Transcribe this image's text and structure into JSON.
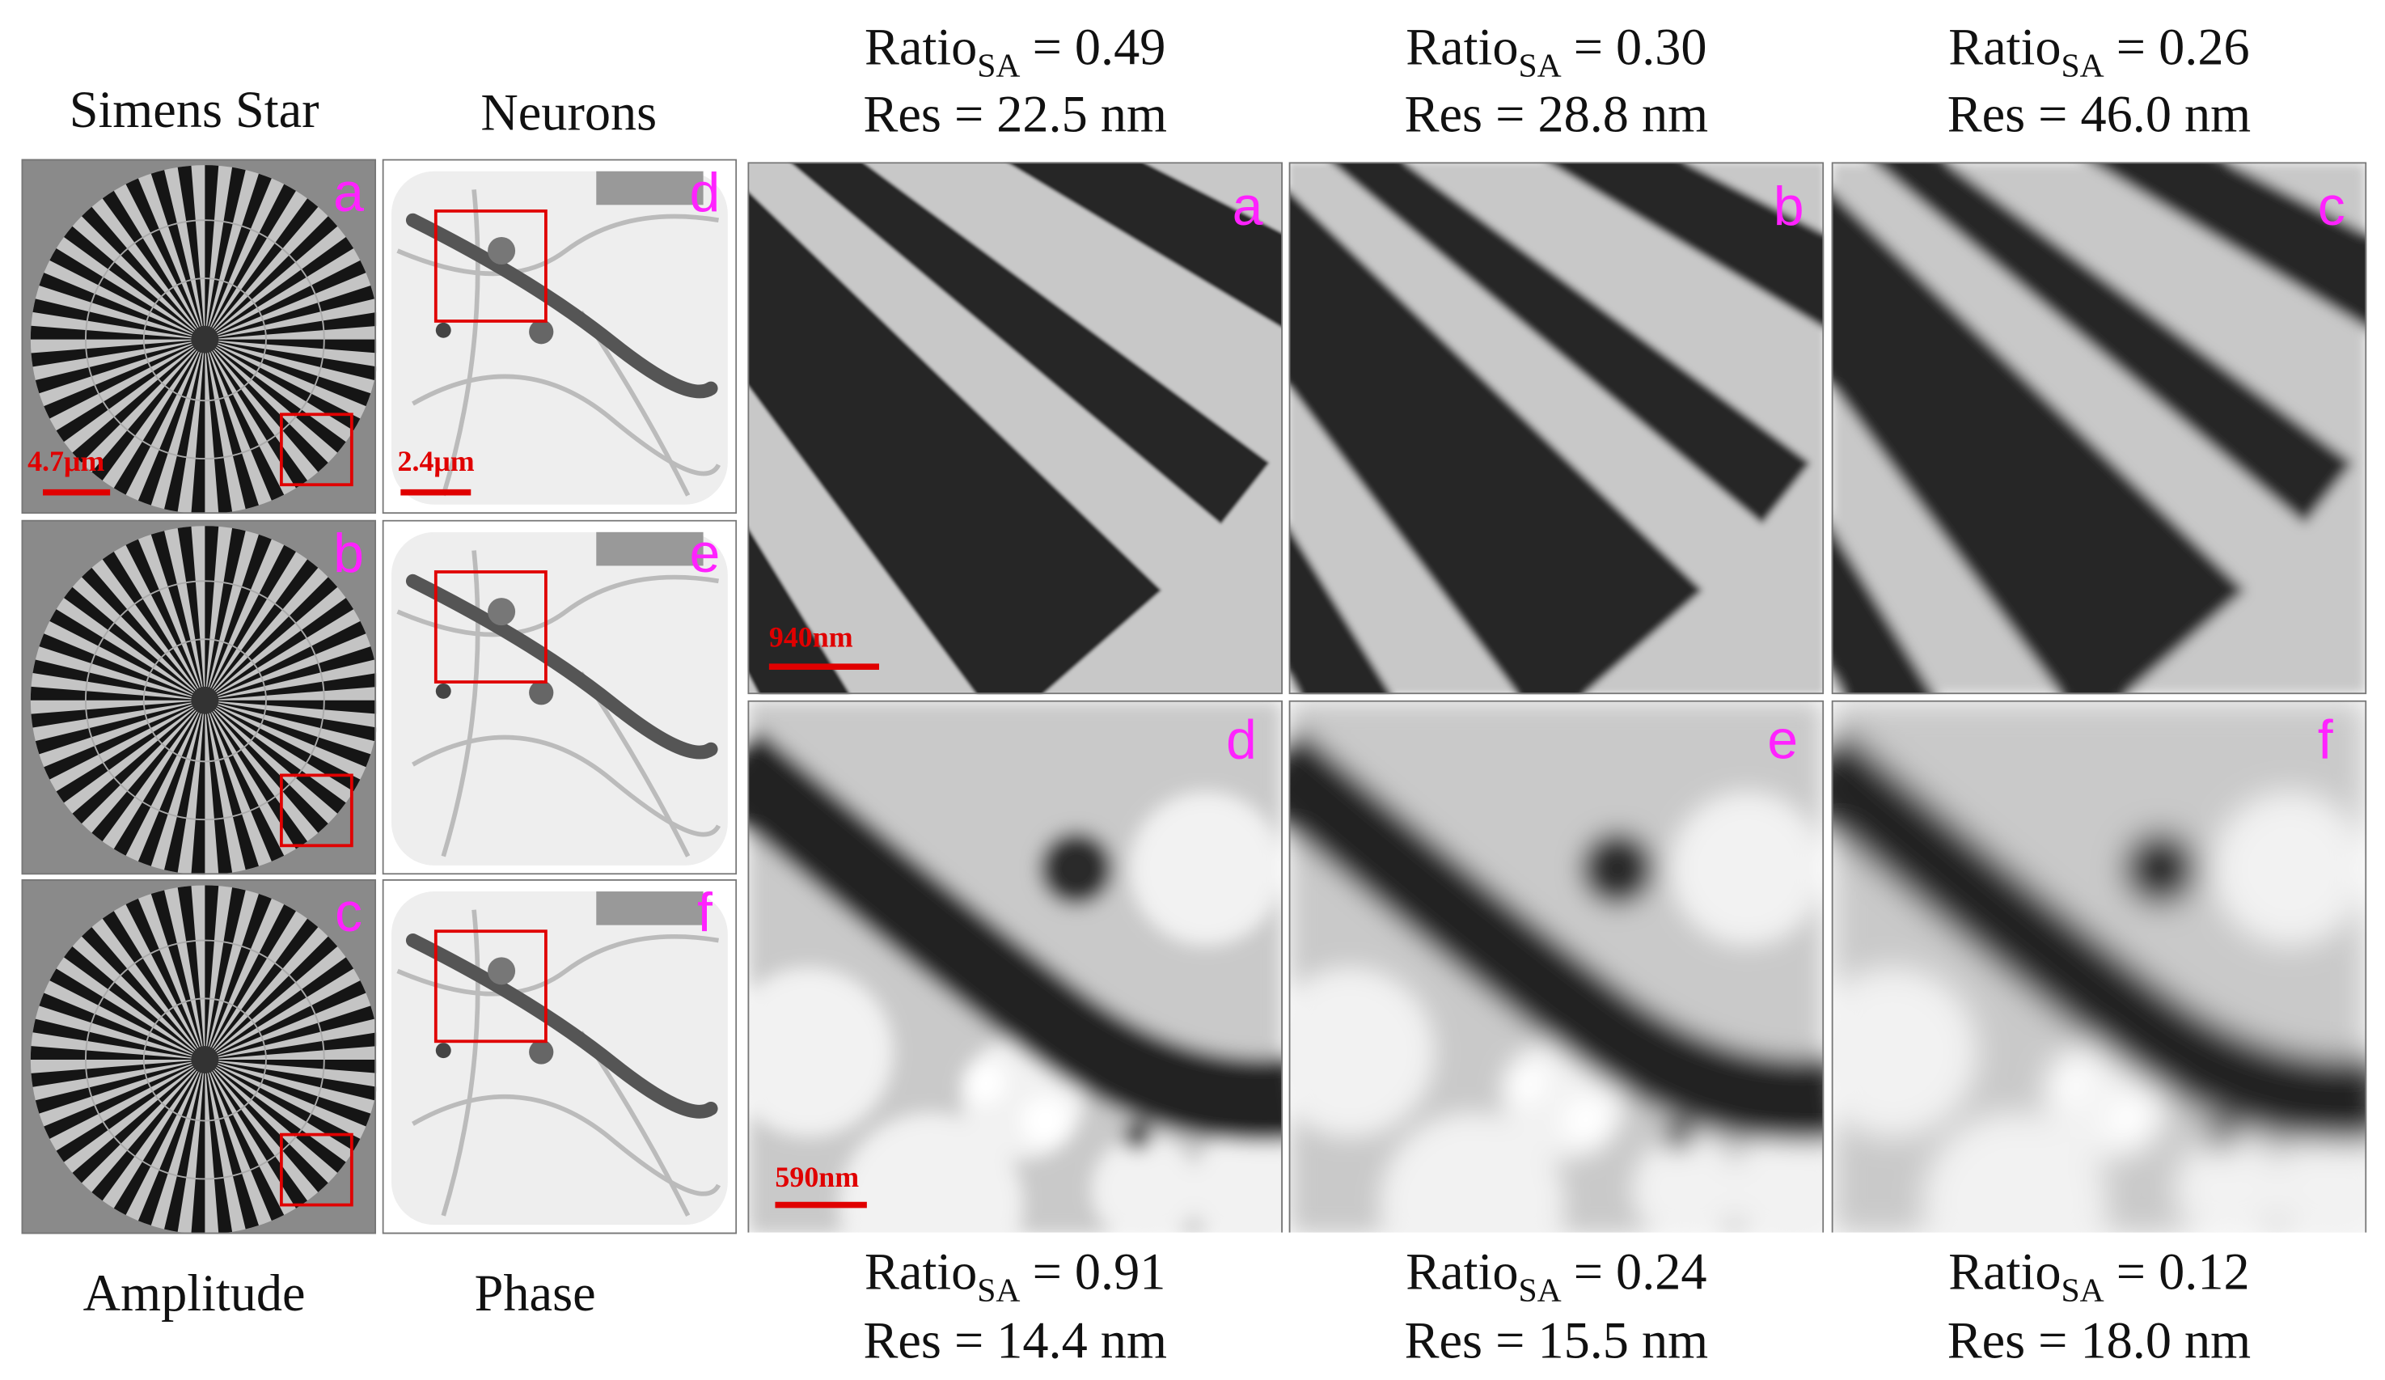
{
  "headers": {
    "amplitude_column": "Simens Star",
    "phase_column": "Neurons"
  },
  "footers": {
    "amplitude": "Amplitude",
    "phase": "Phase"
  },
  "small_panels": {
    "amplitude": [
      "a",
      "b",
      "c"
    ],
    "phase": [
      "d",
      "e",
      "f"
    ]
  },
  "scale_bars": {
    "amplitude": "4.7μm",
    "phase": "2.4μm",
    "zoom_top": "940nm",
    "zoom_bottom": "590nm"
  },
  "zoom_panels": {
    "top": [
      {
        "label": "a",
        "ratio": {
          "base": "Ratio",
          "sub": "SA",
          "value": "= 0.49"
        },
        "res": "Res = 22.5 nm"
      },
      {
        "label": "b",
        "ratio": {
          "base": "Ratio",
          "sub": "SA",
          "value": "= 0.30"
        },
        "res": "Res = 28.8 nm"
      },
      {
        "label": "c",
        "ratio": {
          "base": "Ratio",
          "sub": "SA",
          "value": "= 0.26"
        },
        "res": "Res = 46.0 nm"
      }
    ],
    "bottom": [
      {
        "label": "d",
        "ratio": {
          "base": "Ratio",
          "sub": "SA",
          "value": "= 0.91"
        },
        "res": "Res = 14.4 nm"
      },
      {
        "label": "e",
        "ratio": {
          "base": "Ratio",
          "sub": "SA",
          "value": "= 0.24"
        },
        "res": "Res = 15.5 nm"
      },
      {
        "label": "f",
        "ratio": {
          "base": "Ratio",
          "sub": "SA",
          "value": "= 0.12"
        },
        "res": "Res = 18.0 nm"
      }
    ]
  }
}
